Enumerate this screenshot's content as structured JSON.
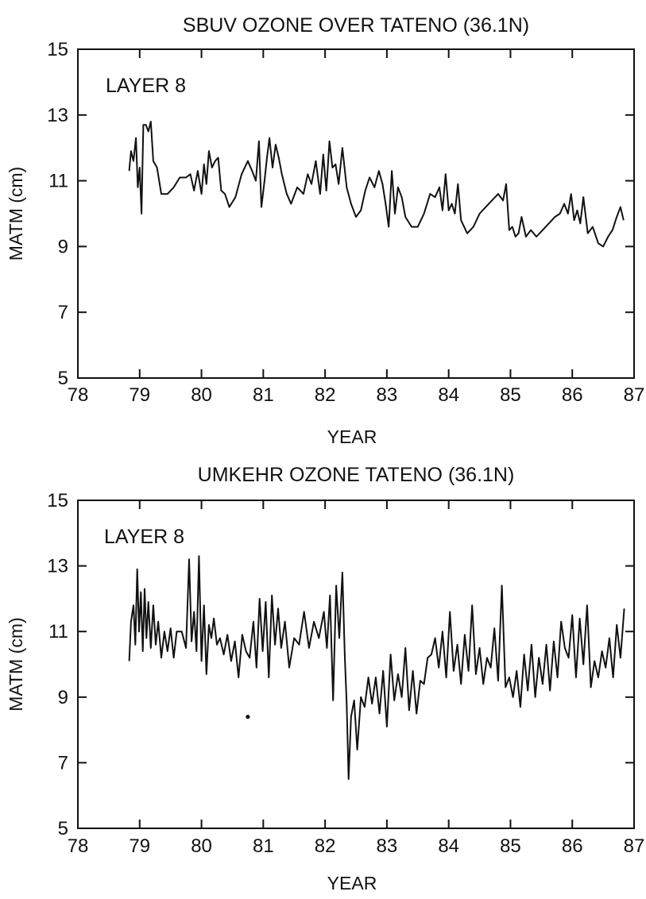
{
  "chart_data": [
    {
      "type": "line",
      "title": "SBUV OZONE OVER TATENO (36.1N)",
      "xlabel": "YEAR",
      "ylabel": "MATM (cm)",
      "annotation": "LAYER 8",
      "xlim": [
        78,
        87
      ],
      "ylim": [
        5,
        15
      ],
      "xticks": [
        78,
        79,
        80,
        81,
        82,
        83,
        84,
        85,
        86,
        87
      ],
      "yticks": [
        5,
        7,
        9,
        11,
        13,
        15
      ],
      "grid": false,
      "series": [
        {
          "x": [
            78.83,
            78.86,
            78.9,
            78.94,
            78.97,
            79.0,
            79.03,
            79.06,
            79.1,
            79.14,
            79.18,
            79.22,
            79.28,
            79.35,
            79.45,
            79.55,
            79.65,
            79.75,
            79.82,
            79.88,
            79.94,
            80.0,
            80.04,
            80.08,
            80.12,
            80.17,
            80.22,
            80.27,
            80.32,
            80.38,
            80.45,
            80.55,
            80.65,
            80.75,
            80.82,
            80.88,
            80.93,
            80.97,
            81.02,
            81.06,
            81.1,
            81.15,
            81.2,
            81.25,
            81.3,
            81.38,
            81.45,
            81.55,
            81.65,
            81.72,
            81.78,
            81.85,
            81.92,
            81.97,
            82.02,
            82.07,
            82.12,
            82.17,
            82.22,
            82.28,
            82.35,
            82.42,
            82.5,
            82.58,
            82.65,
            82.72,
            82.8,
            82.87,
            82.93,
            82.98,
            83.03,
            83.08,
            83.13,
            83.18,
            83.24,
            83.3,
            83.4,
            83.5,
            83.6,
            83.7,
            83.78,
            83.85,
            83.9,
            83.95,
            84.0,
            84.05,
            84.1,
            84.15,
            84.2,
            84.3,
            84.4,
            84.5,
            84.6,
            84.7,
            84.8,
            84.88,
            84.93,
            84.98,
            85.03,
            85.08,
            85.13,
            85.18,
            85.25,
            85.33,
            85.42,
            85.52,
            85.62,
            85.72,
            85.8,
            85.87,
            85.93,
            85.98,
            86.03,
            86.08,
            86.13,
            86.18,
            86.25,
            86.33,
            86.42,
            86.5,
            86.58,
            86.65,
            86.72,
            86.78,
            86.83
          ],
          "y": [
            11.3,
            11.9,
            11.6,
            12.3,
            10.8,
            11.4,
            10.0,
            12.7,
            12.7,
            12.5,
            12.8,
            11.6,
            11.4,
            10.6,
            10.6,
            10.8,
            11.1,
            11.1,
            11.2,
            10.7,
            11.3,
            10.6,
            11.5,
            10.9,
            11.9,
            11.4,
            11.6,
            11.7,
            10.7,
            10.6,
            10.2,
            10.5,
            11.2,
            11.6,
            11.3,
            11.0,
            12.2,
            10.2,
            11.0,
            11.7,
            12.3,
            11.4,
            12.1,
            11.7,
            11.2,
            10.6,
            10.3,
            10.8,
            10.6,
            11.2,
            10.9,
            11.6,
            10.6,
            11.8,
            10.7,
            12.2,
            11.4,
            11.5,
            10.9,
            12.0,
            10.8,
            10.3,
            9.9,
            10.1,
            10.7,
            11.1,
            10.8,
            11.3,
            10.9,
            10.3,
            9.6,
            11.3,
            10.0,
            10.8,
            10.5,
            9.9,
            9.6,
            9.6,
            10.0,
            10.6,
            10.5,
            10.8,
            10.1,
            11.2,
            10.1,
            10.3,
            10.0,
            10.9,
            9.8,
            9.4,
            9.6,
            10.0,
            10.2,
            10.4,
            10.6,
            10.4,
            10.9,
            9.5,
            9.6,
            9.3,
            9.4,
            9.9,
            9.3,
            9.5,
            9.3,
            9.5,
            9.7,
            9.9,
            10.0,
            10.3,
            10.0,
            10.6,
            9.8,
            10.1,
            9.7,
            10.5,
            9.4,
            9.6,
            9.1,
            9.0,
            9.3,
            9.5,
            9.9,
            10.2,
            9.8
          ]
        }
      ]
    },
    {
      "type": "line",
      "title": "UMKEHR OZONE TATENO (36.1N)",
      "xlabel": "YEAR",
      "ylabel": "MATM (cm)",
      "annotation": "LAYER 8",
      "xlim": [
        78,
        87
      ],
      "ylim": [
        5,
        15
      ],
      "xticks": [
        78,
        79,
        80,
        81,
        82,
        83,
        84,
        85,
        86,
        87
      ],
      "yticks": [
        5,
        7,
        9,
        11,
        13,
        15
      ],
      "grid": false,
      "series": [
        {
          "x": [
            78.83,
            78.86,
            78.9,
            78.93,
            78.96,
            78.99,
            79.02,
            79.05,
            79.08,
            79.11,
            79.14,
            79.18,
            79.22,
            79.26,
            79.3,
            79.35,
            79.4,
            79.45,
            79.5,
            79.55,
            79.6,
            79.68,
            79.75,
            79.8,
            79.84,
            79.88,
            79.92,
            79.96,
            80.0,
            80.04,
            80.08,
            80.12,
            80.16,
            80.2,
            80.25,
            80.3,
            80.36,
            80.42,
            80.48,
            80.54,
            80.6,
            80.66,
            80.72,
            80.78,
            80.84,
            80.89,
            80.94,
            80.99,
            81.04,
            81.09,
            81.14,
            81.19,
            81.24,
            81.29,
            81.35,
            81.42,
            81.5,
            81.58,
            81.66,
            81.74,
            81.82,
            81.9,
            81.98,
            82.03,
            82.08,
            82.13,
            82.18,
            82.23,
            82.28,
            82.32,
            82.35,
            82.38,
            82.42,
            82.47,
            82.52,
            82.58,
            82.64,
            82.7,
            82.76,
            82.82,
            82.88,
            82.94,
            83.0,
            83.06,
            83.12,
            83.18,
            83.24,
            83.3,
            83.36,
            83.42,
            83.48,
            83.54,
            83.6,
            83.66,
            83.72,
            83.78,
            83.84,
            83.9,
            83.96,
            84.02,
            84.08,
            84.14,
            84.2,
            84.26,
            84.32,
            84.38,
            84.44,
            84.5,
            84.56,
            84.62,
            84.68,
            84.74,
            84.8,
            84.86,
            84.92,
            84.98,
            85.04,
            85.1,
            85.16,
            85.22,
            85.28,
            85.34,
            85.4,
            85.46,
            85.52,
            85.58,
            85.64,
            85.7,
            85.76,
            85.82,
            85.88,
            85.94,
            86.0,
            86.06,
            86.12,
            86.18,
            86.24,
            86.3,
            86.36,
            86.42,
            86.48,
            86.54,
            86.6,
            86.66,
            86.72,
            86.78,
            86.84
          ],
          "y": [
            10.1,
            11.3,
            11.8,
            10.6,
            12.9,
            11.0,
            12.2,
            10.4,
            12.3,
            10.8,
            11.9,
            10.5,
            11.8,
            10.6,
            11.3,
            10.2,
            11.0,
            10.4,
            11.1,
            10.2,
            11.0,
            11.0,
            10.5,
            13.2,
            10.7,
            11.6,
            10.4,
            13.3,
            10.1,
            11.8,
            9.7,
            11.2,
            10.8,
            11.4,
            10.6,
            10.8,
            10.3,
            10.9,
            10.1,
            10.7,
            9.6,
            10.9,
            10.4,
            10.2,
            11.3,
            9.9,
            12.0,
            10.4,
            11.9,
            9.6,
            12.1,
            10.6,
            11.7,
            10.5,
            11.3,
            9.9,
            10.8,
            10.6,
            11.6,
            10.5,
            11.3,
            10.8,
            11.6,
            10.5,
            12.1,
            8.9,
            12.4,
            10.8,
            12.8,
            10.2,
            8.8,
            6.5,
            8.4,
            8.9,
            7.4,
            9.0,
            8.7,
            9.6,
            8.8,
            9.6,
            8.5,
            9.8,
            8.1,
            10.3,
            8.9,
            9.7,
            9.0,
            10.5,
            8.6,
            9.8,
            8.5,
            9.5,
            9.4,
            10.2,
            10.3,
            10.8,
            9.9,
            11.0,
            9.6,
            11.6,
            9.8,
            10.6,
            9.4,
            10.9,
            9.8,
            11.8,
            9.7,
            10.5,
            9.4,
            10.2,
            9.9,
            11.1,
            9.5,
            12.4,
            9.3,
            9.6,
            9.0,
            9.8,
            8.7,
            10.3,
            9.2,
            10.6,
            9.0,
            10.2,
            9.4,
            10.6,
            9.2,
            10.7,
            9.6,
            11.3,
            10.5,
            10.2,
            11.5,
            9.6,
            11.4,
            10.0,
            11.8,
            9.3,
            10.1,
            9.6,
            10.4,
            9.9,
            10.8,
            9.6,
            11.2,
            10.2,
            11.7
          ]
        }
      ],
      "points": [
        {
          "x": 80.75,
          "y": 8.4
        }
      ]
    }
  ]
}
